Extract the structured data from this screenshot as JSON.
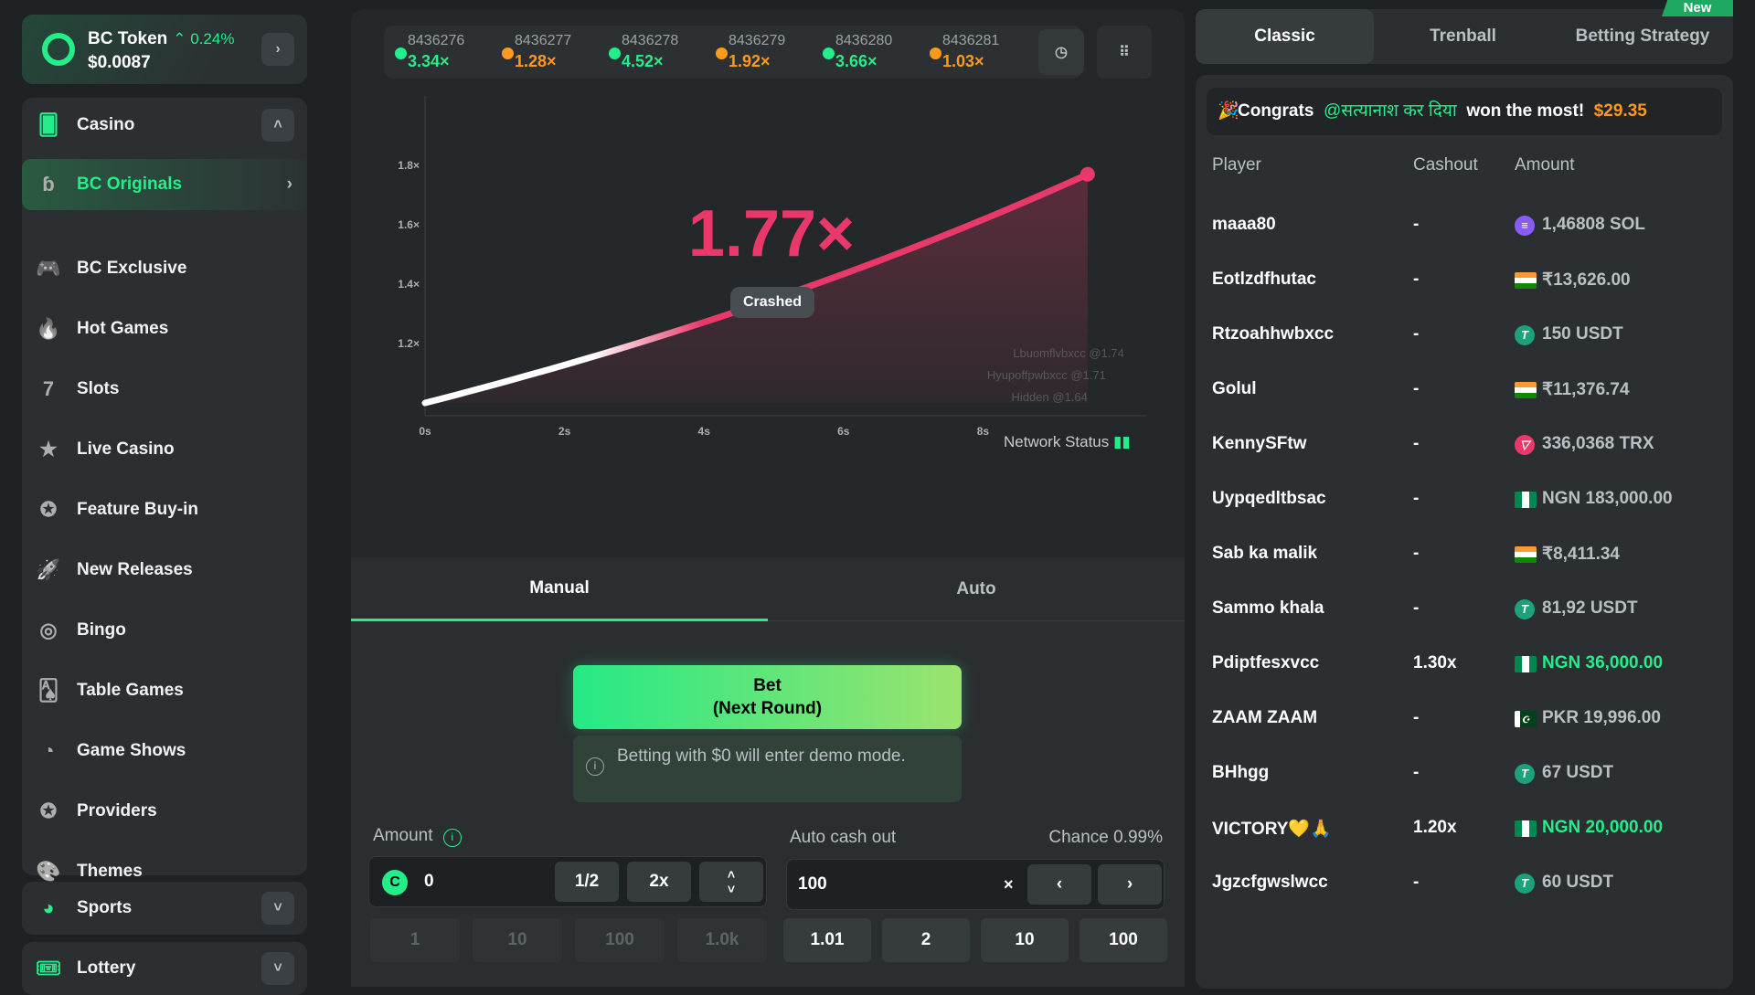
{
  "token": {
    "name": "BC Token",
    "change": "0.24%",
    "price": "$0.0087"
  },
  "sidebar": {
    "casino": "Casino",
    "items": [
      {
        "label": "BC Originals",
        "icon": "bc-logo-icon"
      },
      {
        "label": "BC Exclusive",
        "icon": "gamepad-icon"
      },
      {
        "label": "Hot Games",
        "icon": "flame-icon"
      },
      {
        "label": "Slots",
        "icon": "slot-seven-icon"
      },
      {
        "label": "Live Casino",
        "icon": "live-star-icon"
      },
      {
        "label": "Feature Buy-in",
        "icon": "star-check-icon"
      },
      {
        "label": "New Releases",
        "icon": "rocket-icon"
      },
      {
        "label": "Bingo",
        "icon": "bingo-icon"
      },
      {
        "label": "Table Games",
        "icon": "cards-icon"
      },
      {
        "label": "Game Shows",
        "icon": "pacman-icon"
      },
      {
        "label": "Providers",
        "icon": "star-circle-icon"
      },
      {
        "label": "Themes",
        "icon": "palette-icon"
      }
    ],
    "sports": "Sports",
    "lottery": "Lottery"
  },
  "history": [
    {
      "id": "8436276",
      "value": "3.34×",
      "color": "#24ee89"
    },
    {
      "id": "8436277",
      "value": "1.28×",
      "color": "#ff9a1f"
    },
    {
      "id": "8436278",
      "value": "4.52×",
      "color": "#24ee89"
    },
    {
      "id": "8436279",
      "value": "1.92×",
      "color": "#ff9a1f"
    },
    {
      "id": "8436280",
      "value": "3.66×",
      "color": "#24ee89"
    },
    {
      "id": "8436281",
      "value": "1.03×",
      "color": "#ff9a1f"
    }
  ],
  "game": {
    "multiplier": "1.77×",
    "status": "Crashed",
    "network": "Network Status",
    "chart": {
      "x_ticks": [
        "0s",
        "2s",
        "4s",
        "6s",
        "8s"
      ],
      "y_ticks": [
        "1.2×",
        "1.4×",
        "1.6×",
        "1.8×"
      ],
      "crash_value": 1.77,
      "crash_time_s": 9.5,
      "line_color": "#e8396a"
    },
    "cashouts": [
      "Lbuomflvbxcc @1.74",
      "Hyupoffpwbxcc @1.71",
      "Hidden @1.64"
    ]
  },
  "bet": {
    "tabs": [
      "Manual",
      "Auto"
    ],
    "button_line1": "Bet",
    "button_line2": "(Next Round)",
    "info": "Betting with $0 will enter demo mode.",
    "amount_label": "Amount",
    "amount": "0",
    "half": "1/2",
    "double": "2x",
    "amount_quick": [
      "1",
      "10",
      "100",
      "1.0k"
    ],
    "auto_label": "Auto cash out",
    "chance": "Chance 0.99%",
    "auto_value": "100",
    "x": "×",
    "auto_quick": [
      "1.01",
      "2",
      "10",
      "100"
    ]
  },
  "right": {
    "tabs": [
      "Classic",
      "Trenball",
      "Betting Strategy"
    ],
    "new_badge": "New",
    "congrats": "Congrats",
    "winner": "@सत्यानाश कर दिया",
    "won": "won the most!",
    "prize": "$29.35",
    "headers": [
      "Player",
      "Cashout",
      "Amount"
    ],
    "rows": [
      {
        "player": "maaa80",
        "cashout": "-",
        "amount": "1,46808 SOL",
        "icon": "solana-icon",
        "win": false
      },
      {
        "player": "Eotlzdfhutac",
        "cashout": "-",
        "amount": "₹13,626.00",
        "icon": "india-flag-icon",
        "win": false
      },
      {
        "player": "Rtzoahhwbxcc",
        "cashout": "-",
        "amount": "150 USDT",
        "icon": "tether-icon",
        "win": false
      },
      {
        "player": "Golul",
        "cashout": "-",
        "amount": "₹11,376.74",
        "icon": "india-flag-icon",
        "win": false
      },
      {
        "player": "KennySFtw",
        "cashout": "-",
        "amount": "336,0368 TRX",
        "icon": "tron-icon",
        "win": false
      },
      {
        "player": "Uypqedltbsac",
        "cashout": "-",
        "amount": "NGN 183,000.00",
        "icon": "nigeria-flag-icon",
        "win": false
      },
      {
        "player": "Sab ka malik",
        "cashout": "-",
        "amount": "₹8,411.34",
        "icon": "india-flag-icon",
        "win": false
      },
      {
        "player": "Sammo khala",
        "cashout": "-",
        "amount": "81,92 USDT",
        "icon": "tether-icon",
        "win": false
      },
      {
        "player": "Pdiptfesxvcc",
        "cashout": "1.30x",
        "amount": "NGN 36,000.00",
        "icon": "nigeria-flag-icon",
        "win": true
      },
      {
        "player": "ZAAM ZAAM",
        "cashout": "-",
        "amount": "PKR 19,996.00",
        "icon": "pakistan-flag-icon",
        "win": false
      },
      {
        "player": "BHhgg",
        "cashout": "-",
        "amount": "67 USDT",
        "icon": "tether-icon",
        "win": false
      },
      {
        "player": "VICTORY💛🙏",
        "cashout": "1.20x",
        "amount": "NGN 20,000.00",
        "icon": "nigeria-flag-icon",
        "win": true
      },
      {
        "player": "Jgzcfgwslwcc",
        "cashout": "-",
        "amount": "60 USDT",
        "icon": "tether-icon",
        "win": false
      }
    ]
  },
  "colors": {
    "accent": "#24ee89",
    "orange": "#ff9a1f",
    "crash": "#e8396a"
  }
}
